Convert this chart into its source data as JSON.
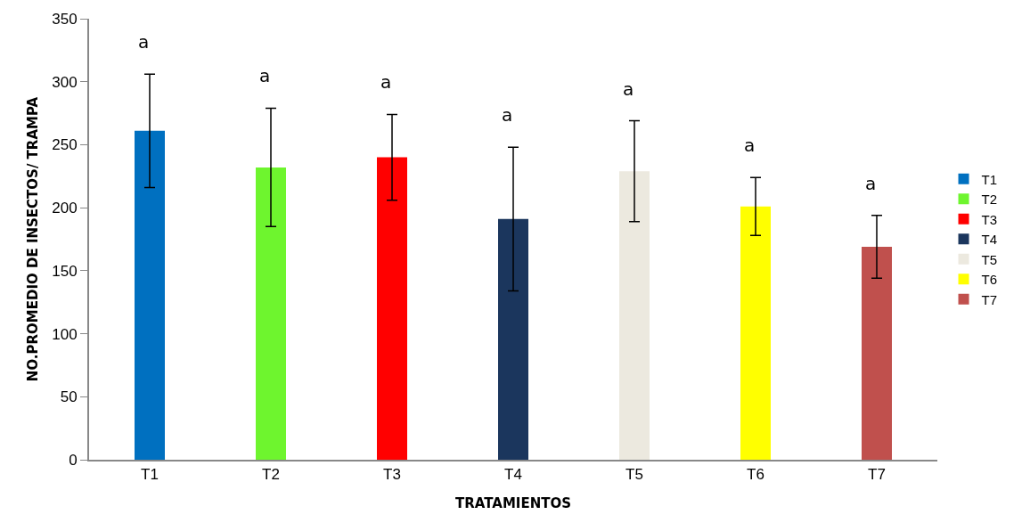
{
  "chart_data": {
    "type": "bar",
    "xlabel": "TRATAMIENTOS",
    "ylabel": "NO.PROMEDIO DE INSECTOS/ TRAMPA",
    "categories": [
      "T1",
      "T2",
      "T3",
      "T4",
      "T5",
      "T6",
      "T7"
    ],
    "series": [
      {
        "name": "T1",
        "color": "#0070c0",
        "values": [
          261,
          null,
          null,
          null,
          null,
          null,
          null
        ],
        "errors": [
          45,
          null,
          null,
          null,
          null,
          null,
          null
        ]
      },
      {
        "name": "T2",
        "color": "#6ef52e",
        "values": [
          null,
          232,
          null,
          null,
          null,
          null,
          null
        ],
        "errors": [
          null,
          47,
          null,
          null,
          null,
          null,
          null
        ]
      },
      {
        "name": "T3",
        "color": "#ff0000",
        "values": [
          null,
          null,
          240,
          null,
          null,
          null,
          null
        ],
        "errors": [
          null,
          null,
          34,
          null,
          null,
          null,
          null
        ]
      },
      {
        "name": "T4",
        "color": "#1b365d",
        "values": [
          null,
          null,
          null,
          191,
          null,
          null,
          null
        ],
        "errors": [
          null,
          null,
          null,
          57,
          null,
          null,
          null
        ]
      },
      {
        "name": "T5",
        "color": "#ece9df",
        "values": [
          null,
          null,
          null,
          null,
          229,
          null,
          null
        ],
        "errors": [
          null,
          null,
          null,
          null,
          40,
          null,
          null
        ]
      },
      {
        "name": "T6",
        "color": "#ffff00",
        "values": [
          null,
          null,
          null,
          null,
          null,
          201,
          null
        ],
        "errors": [
          null,
          null,
          null,
          null,
          null,
          23,
          null
        ]
      },
      {
        "name": "T7",
        "color": "#c0504d",
        "values": [
          null,
          null,
          null,
          null,
          null,
          null,
          169
        ],
        "errors": [
          null,
          null,
          null,
          null,
          null,
          null,
          25
        ]
      }
    ],
    "annotations": [
      "a",
      "a",
      "a",
      "a",
      "a",
      "a",
      "a"
    ],
    "ylim": [
      0,
      350
    ],
    "yticks": [
      0,
      50,
      100,
      150,
      200,
      250,
      300,
      350
    ],
    "grid": false,
    "legend": "right"
  }
}
